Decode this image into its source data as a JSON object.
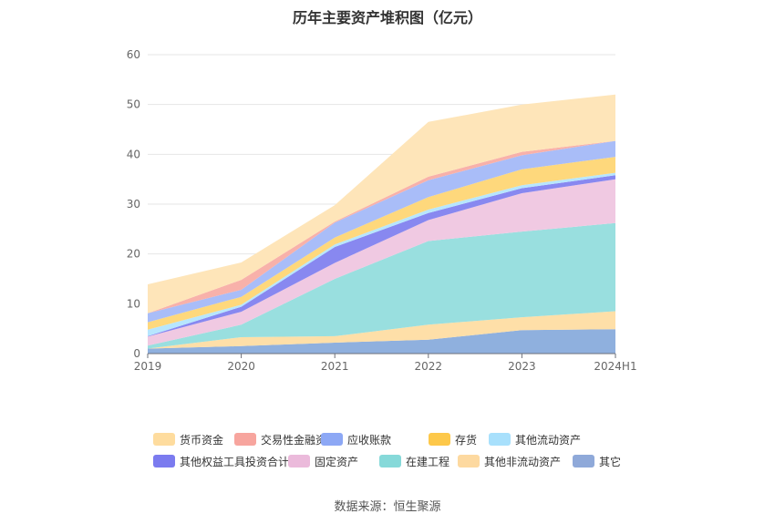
{
  "chart_data": {
    "type": "area",
    "stacked": true,
    "title": "历年主要资产堆积图（亿元）",
    "xlabel": "",
    "ylabel": "",
    "ylim": [
      0,
      60
    ],
    "yticks": [
      0,
      10,
      20,
      30,
      40,
      50,
      60
    ],
    "categories": [
      "2019",
      "2020",
      "2021",
      "2022",
      "2023",
      "2024H1"
    ],
    "series": [
      {
        "name": "其它",
        "color": "#8fb0de",
        "values": [
          1.0,
          1.5,
          2.2,
          2.8,
          4.7,
          4.9
        ]
      },
      {
        "name": "其他非流动资产",
        "color": "#fedfa8",
        "values": [
          0.0,
          1.8,
          1.3,
          3.0,
          2.6,
          3.6
        ]
      },
      {
        "name": "在建工程",
        "color": "#99dfdf",
        "values": [
          0.6,
          2.5,
          11.5,
          16.8,
          17.2,
          17.7
        ]
      },
      {
        "name": "固定资产",
        "color": "#f0c9e2",
        "values": [
          1.8,
          2.6,
          3.2,
          4.2,
          7.7,
          8.8
        ]
      },
      {
        "name": "其他权益工具投资合计",
        "color": "#8888f0",
        "values": [
          0.1,
          1.0,
          3.2,
          1.4,
          1.0,
          0.8
        ]
      },
      {
        "name": "其他流动资产",
        "color": "#b7e6fe",
        "values": [
          1.3,
          0.4,
          0.5,
          0.7,
          0.6,
          0.5
        ]
      },
      {
        "name": "存货",
        "color": "#fed87c",
        "values": [
          1.5,
          1.6,
          1.4,
          2.5,
          3.2,
          3.2
        ]
      },
      {
        "name": "应收账款",
        "color": "#a9bdf8",
        "values": [
          1.8,
          1.4,
          3.0,
          3.4,
          2.8,
          3.2
        ]
      },
      {
        "name": "交易性金融资产",
        "color": "#f8b1aa",
        "values": [
          0.0,
          2.0,
          0.2,
          0.7,
          0.7,
          0.0
        ]
      },
      {
        "name": "货币资金",
        "color": "#fee5b9",
        "values": [
          5.8,
          3.5,
          3.3,
          11.0,
          9.5,
          9.3
        ]
      }
    ],
    "legend": {
      "position": "bottom",
      "row1": [
        "货币资金",
        "交易性金融资产",
        "应收账款",
        "存货",
        "其他流动资产"
      ],
      "row2": [
        "其他权益工具投资合计",
        "固定资产",
        "在建工程",
        "其他非流动资产",
        "其它"
      ]
    },
    "legend_colors": {
      "货币资金": "#fedc9e",
      "交易性金融资产": "#f7a59e",
      "应收账款": "#8da8f5",
      "存货": "#fdc84a",
      "其他流动资产": "#a8e0fc",
      "其他权益工具投资合计": "#7b7bef",
      "固定资产": "#ebbadb",
      "在建工程": "#86d9d9",
      "其他非流动资产": "#fdd9a0",
      "其它": "#8fa9d9"
    },
    "grid": true
  },
  "source": "数据来源：恒生聚源"
}
